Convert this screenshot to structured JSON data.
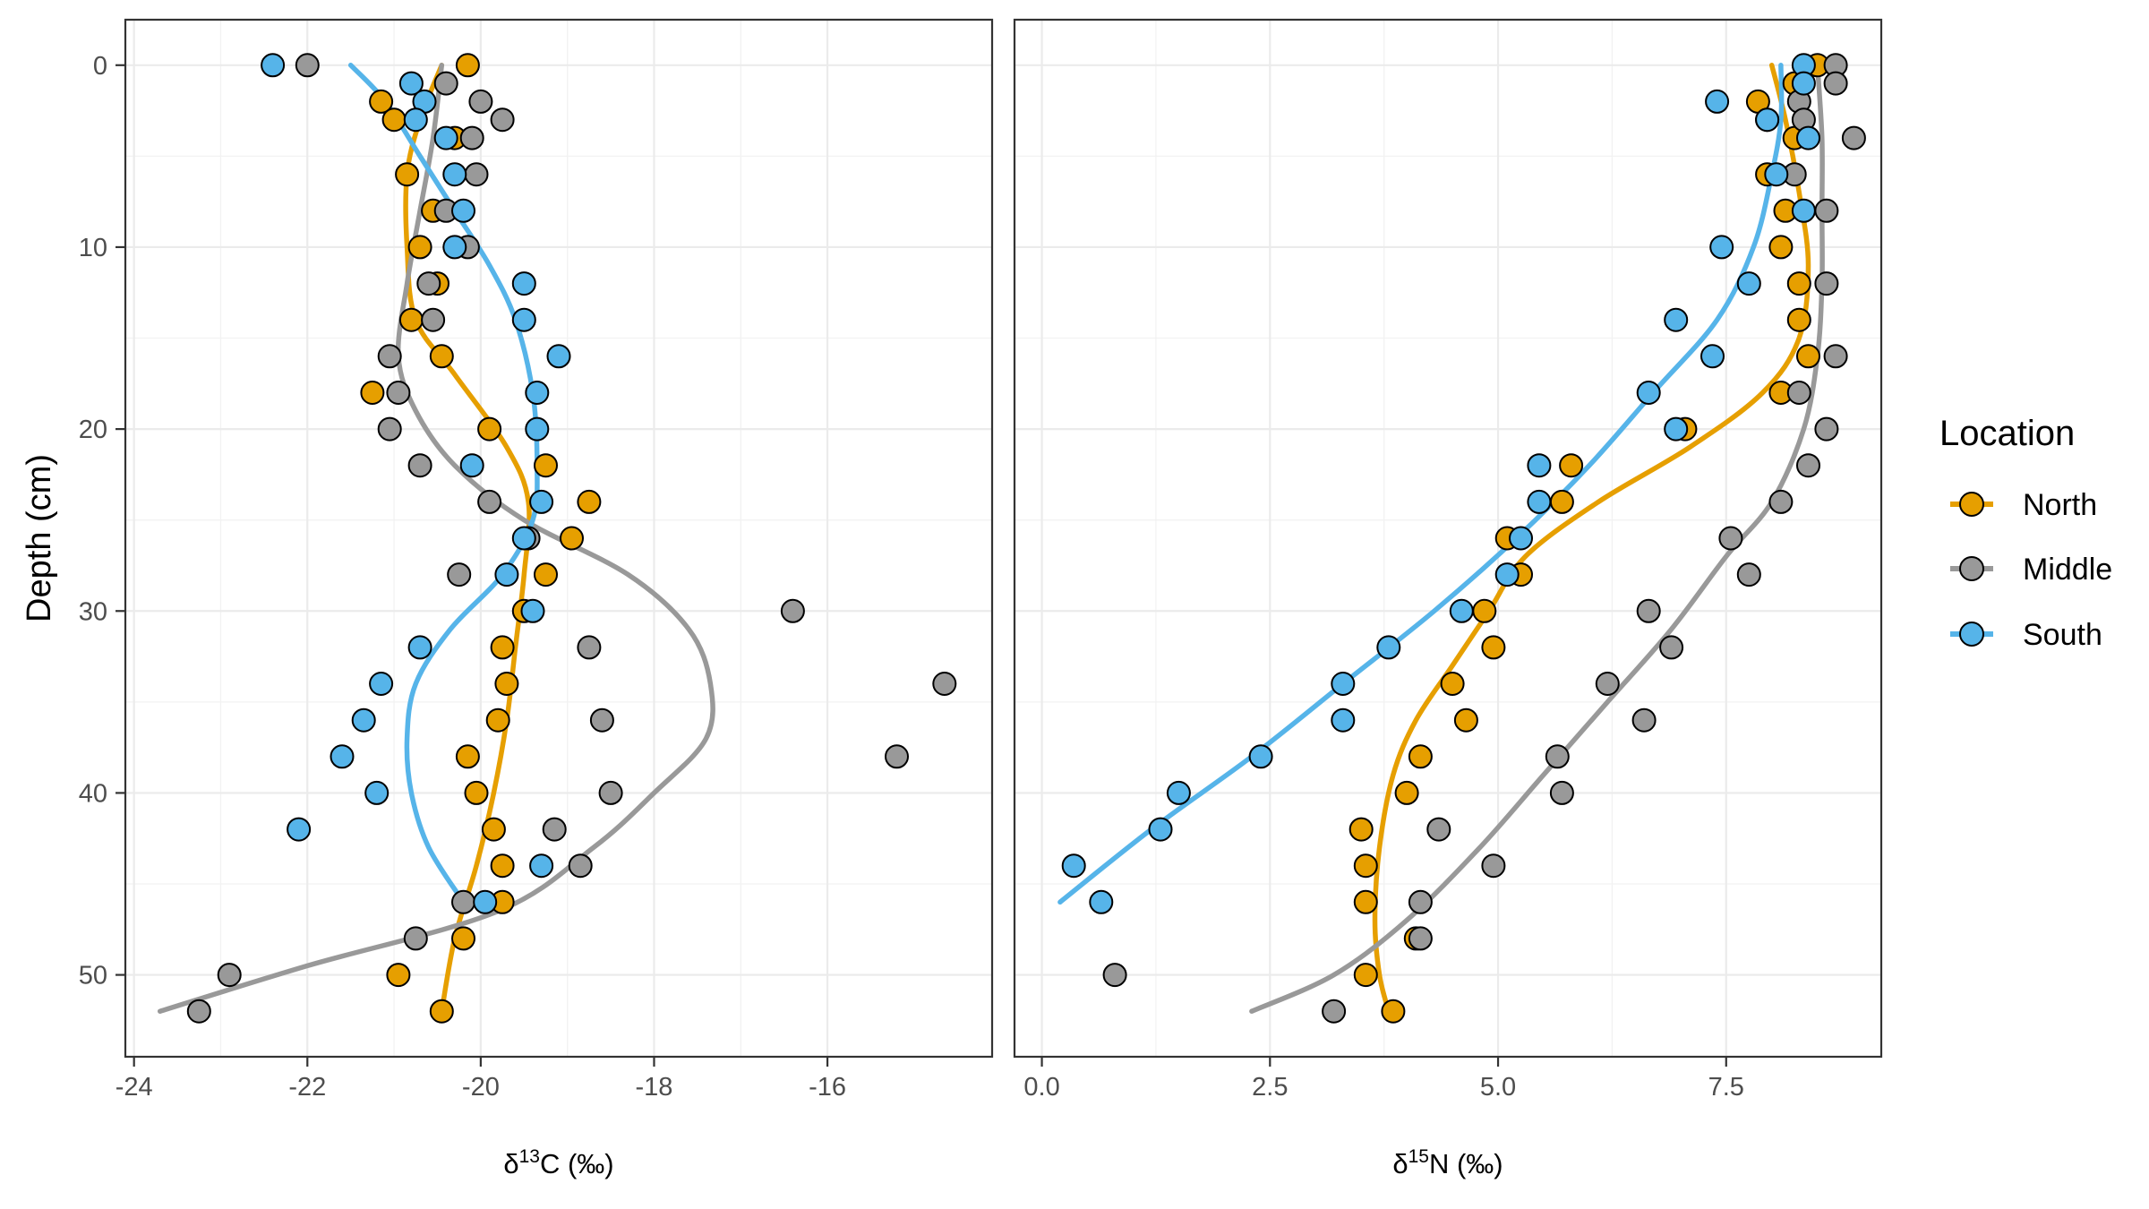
{
  "chart_data": [
    {
      "type": "scatter",
      "panel": "left",
      "xlabel": "δ13C (‰)",
      "xlabel_main": "δ",
      "xlabel_sup": "13",
      "xlabel_rest": "C (‰)",
      "ylabel": "Depth (cm)",
      "xlim": [
        -24.1,
        -14.1
      ],
      "ylim": [
        54.5,
        -2.5
      ],
      "y_reversed": true,
      "grid": true,
      "x_ticks": [
        -24,
        -22,
        -20,
        -18,
        -16
      ],
      "x_tick_labels": [
        "-24",
        "-22",
        "-20",
        "-18",
        "-16"
      ],
      "y_ticks": [
        0,
        10,
        20,
        30,
        40,
        50
      ],
      "y_tick_labels": [
        "0",
        "10",
        "20",
        "30",
        "40",
        "50"
      ],
      "series": [
        {
          "name": "North",
          "color": "#E69F00",
          "points": [
            [
              -20.15,
              0
            ],
            [
              -21.15,
              2
            ],
            [
              -21.0,
              3
            ],
            [
              -20.3,
              4
            ],
            [
              -20.85,
              6
            ],
            [
              -20.55,
              8
            ],
            [
              -20.7,
              10
            ],
            [
              -20.5,
              12
            ],
            [
              -20.8,
              14
            ],
            [
              -20.45,
              16
            ],
            [
              -21.25,
              18
            ],
            [
              -19.9,
              20
            ],
            [
              -19.25,
              22
            ],
            [
              -18.75,
              24
            ],
            [
              -18.95,
              26
            ],
            [
              -19.25,
              28
            ],
            [
              -19.5,
              30
            ],
            [
              -19.75,
              32
            ],
            [
              -19.7,
              34
            ],
            [
              -19.8,
              36
            ],
            [
              -20.15,
              38
            ],
            [
              -20.05,
              40
            ],
            [
              -19.85,
              42
            ],
            [
              -19.75,
              44
            ],
            [
              -19.75,
              46
            ],
            [
              -20.2,
              48
            ],
            [
              -20.95,
              50
            ],
            [
              -20.45,
              52
            ]
          ],
          "fit": [
            [
              -20.45,
              52
            ],
            [
              -20.3,
              48
            ],
            [
              -20.05,
              44
            ],
            [
              -19.85,
              40
            ],
            [
              -19.7,
              36
            ],
            [
              -19.6,
              32
            ],
            [
              -19.5,
              28
            ],
            [
              -19.45,
              24
            ],
            [
              -19.7,
              21
            ],
            [
              -20.3,
              17
            ],
            [
              -20.75,
              14
            ],
            [
              -20.85,
              10
            ],
            [
              -20.85,
              6
            ],
            [
              -20.7,
              3
            ],
            [
              -20.45,
              0
            ]
          ]
        },
        {
          "name": "Middle",
          "color": "#999999",
          "points": [
            [
              -22.0,
              0
            ],
            [
              -20.4,
              1
            ],
            [
              -20.0,
              2
            ],
            [
              -19.75,
              3
            ],
            [
              -20.1,
              4
            ],
            [
              -20.05,
              6
            ],
            [
              -20.4,
              8
            ],
            [
              -20.15,
              10
            ],
            [
              -20.6,
              12
            ],
            [
              -20.55,
              14
            ],
            [
              -21.05,
              16
            ],
            [
              -20.95,
              18
            ],
            [
              -21.05,
              20
            ],
            [
              -20.7,
              22
            ],
            [
              -19.9,
              24
            ],
            [
              -19.45,
              26
            ],
            [
              -20.25,
              28
            ],
            [
              -16.4,
              30
            ],
            [
              -18.75,
              32
            ],
            [
              -14.65,
              34
            ],
            [
              -18.6,
              36
            ],
            [
              -15.2,
              38
            ],
            [
              -18.5,
              40
            ],
            [
              -19.15,
              42
            ],
            [
              -18.85,
              44
            ],
            [
              -20.2,
              46
            ],
            [
              -20.75,
              48
            ],
            [
              -22.9,
              50
            ],
            [
              -23.25,
              52
            ]
          ],
          "fit": [
            [
              -20.45,
              0
            ],
            [
              -20.55,
              4
            ],
            [
              -20.7,
              8
            ],
            [
              -20.85,
              12
            ],
            [
              -20.95,
              16
            ],
            [
              -20.75,
              19
            ],
            [
              -20.3,
              22
            ],
            [
              -19.5,
              25
            ],
            [
              -18.3,
              28
            ],
            [
              -17.6,
              31
            ],
            [
              -17.35,
              34
            ],
            [
              -17.4,
              37
            ],
            [
              -18.0,
              40
            ],
            [
              -18.7,
              43
            ],
            [
              -19.8,
              46.5
            ],
            [
              -22.0,
              49.5
            ],
            [
              -23.7,
              52
            ]
          ]
        },
        {
          "name": "South",
          "color": "#56B4E9",
          "points": [
            [
              -22.4,
              0
            ],
            [
              -20.8,
              1
            ],
            [
              -20.65,
              2
            ],
            [
              -20.75,
              3
            ],
            [
              -20.4,
              4
            ],
            [
              -20.3,
              6
            ],
            [
              -20.2,
              8
            ],
            [
              -20.3,
              10
            ],
            [
              -19.5,
              12
            ],
            [
              -19.5,
              14
            ],
            [
              -19.1,
              16
            ],
            [
              -19.35,
              18
            ],
            [
              -19.35,
              20
            ],
            [
              -20.1,
              22
            ],
            [
              -19.3,
              24
            ],
            [
              -19.5,
              26
            ],
            [
              -19.7,
              28
            ],
            [
              -19.4,
              30
            ],
            [
              -20.7,
              32
            ],
            [
              -21.15,
              34
            ],
            [
              -21.35,
              36
            ],
            [
              -21.6,
              38
            ],
            [
              -21.2,
              40
            ],
            [
              -22.1,
              42
            ],
            [
              -19.3,
              44
            ],
            [
              -19.95,
              46
            ]
          ],
          "fit": [
            [
              -21.5,
              0
            ],
            [
              -21.1,
              2
            ],
            [
              -20.7,
              5
            ],
            [
              -20.3,
              8
            ],
            [
              -19.9,
              11
            ],
            [
              -19.6,
              14
            ],
            [
              -19.4,
              18
            ],
            [
              -19.35,
              22
            ],
            [
              -19.4,
              25
            ],
            [
              -19.75,
              28
            ],
            [
              -20.35,
              31
            ],
            [
              -20.75,
              34
            ],
            [
              -20.85,
              37
            ],
            [
              -20.8,
              40
            ],
            [
              -20.6,
              43
            ],
            [
              -20.2,
              46
            ]
          ]
        }
      ]
    },
    {
      "type": "scatter",
      "panel": "right",
      "xlabel": "δ15N (‰)",
      "xlabel_main": "δ",
      "xlabel_sup": "15",
      "xlabel_rest": "N (‰)",
      "xlim": [
        -0.3,
        9.2
      ],
      "ylim": [
        54.5,
        -2.5
      ],
      "y_reversed": true,
      "grid": true,
      "x_ticks": [
        0,
        2.5,
        5,
        7.5
      ],
      "x_tick_labels": [
        "0.0",
        "2.5",
        "5.0",
        "7.5"
      ],
      "series": [
        {
          "name": "North",
          "color": "#E69F00",
          "points": [
            [
              8.5,
              0
            ],
            [
              8.25,
              1
            ],
            [
              7.85,
              2
            ],
            [
              7.95,
              3
            ],
            [
              8.25,
              4
            ],
            [
              7.95,
              6
            ],
            [
              8.15,
              8
            ],
            [
              8.1,
              10
            ],
            [
              8.3,
              12
            ],
            [
              8.3,
              14
            ],
            [
              8.4,
              16
            ],
            [
              8.1,
              18
            ],
            [
              7.05,
              20
            ],
            [
              5.8,
              22
            ],
            [
              5.7,
              24
            ],
            [
              5.1,
              26
            ],
            [
              5.25,
              28
            ],
            [
              4.85,
              30
            ],
            [
              4.95,
              32
            ],
            [
              4.5,
              34
            ],
            [
              4.65,
              36
            ],
            [
              4.15,
              38
            ],
            [
              4.0,
              40
            ],
            [
              3.5,
              42
            ],
            [
              3.55,
              44
            ],
            [
              3.55,
              46
            ],
            [
              4.1,
              48
            ],
            [
              3.55,
              50
            ],
            [
              3.85,
              52
            ]
          ],
          "fit": [
            [
              8.0,
              0
            ],
            [
              8.15,
              3
            ],
            [
              8.3,
              7
            ],
            [
              8.4,
              11
            ],
            [
              8.3,
              15
            ],
            [
              7.9,
              18
            ],
            [
              7.1,
              21
            ],
            [
              6.1,
              24
            ],
            [
              5.3,
              27
            ],
            [
              4.9,
              30
            ],
            [
              4.5,
              33
            ],
            [
              4.1,
              36
            ],
            [
              3.85,
              39
            ],
            [
              3.7,
              43
            ],
            [
              3.65,
              47
            ],
            [
              3.7,
              50
            ],
            [
              3.8,
              52
            ]
          ]
        },
        {
          "name": "Middle",
          "color": "#999999",
          "points": [
            [
              8.7,
              0
            ],
            [
              8.7,
              1
            ],
            [
              8.3,
              2
            ],
            [
              8.35,
              3
            ],
            [
              8.9,
              4
            ],
            [
              8.25,
              6
            ],
            [
              8.6,
              8
            ],
            [
              8.6,
              12
            ],
            [
              8.7,
              16
            ],
            [
              8.3,
              18
            ],
            [
              8.6,
              20
            ],
            [
              8.4,
              22
            ],
            [
              8.1,
              24
            ],
            [
              7.55,
              26
            ],
            [
              7.75,
              28
            ],
            [
              6.65,
              30
            ],
            [
              6.9,
              32
            ],
            [
              6.2,
              34
            ],
            [
              6.6,
              36
            ],
            [
              5.65,
              38
            ],
            [
              5.7,
              40
            ],
            [
              4.35,
              42
            ],
            [
              4.95,
              44
            ],
            [
              4.15,
              46
            ],
            [
              4.15,
              48
            ],
            [
              0.8,
              50
            ],
            [
              3.2,
              52
            ]
          ],
          "fit": [
            [
              8.5,
              0
            ],
            [
              8.55,
              4
            ],
            [
              8.55,
              8
            ],
            [
              8.55,
              12
            ],
            [
              8.5,
              16
            ],
            [
              8.35,
              20
            ],
            [
              8.0,
              24
            ],
            [
              7.5,
              27
            ],
            [
              6.9,
              31
            ],
            [
              6.2,
              35
            ],
            [
              5.5,
              39
            ],
            [
              4.8,
              43
            ],
            [
              4.0,
              47
            ],
            [
              3.2,
              50
            ],
            [
              2.3,
              52
            ]
          ]
        },
        {
          "name": "South",
          "color": "#56B4E9",
          "points": [
            [
              8.35,
              0
            ],
            [
              8.35,
              1
            ],
            [
              7.4,
              2
            ],
            [
              7.95,
              3
            ],
            [
              8.4,
              4
            ],
            [
              8.05,
              6
            ],
            [
              8.35,
              8
            ],
            [
              7.45,
              10
            ],
            [
              7.75,
              12
            ],
            [
              6.95,
              14
            ],
            [
              7.35,
              16
            ],
            [
              6.65,
              18
            ],
            [
              6.95,
              20
            ],
            [
              5.45,
              22
            ],
            [
              5.45,
              24
            ],
            [
              5.25,
              26
            ],
            [
              5.1,
              28
            ],
            [
              4.6,
              30
            ],
            [
              3.8,
              32
            ],
            [
              3.3,
              34
            ],
            [
              3.3,
              36
            ],
            [
              2.4,
              38
            ],
            [
              1.5,
              40
            ],
            [
              1.3,
              42
            ],
            [
              0.35,
              44
            ],
            [
              0.65,
              46
            ]
          ],
          "fit": [
            [
              8.1,
              0
            ],
            [
              8.1,
              3
            ],
            [
              8.0,
              6
            ],
            [
              7.8,
              10
            ],
            [
              7.4,
              14
            ],
            [
              6.7,
              18
            ],
            [
              6.0,
              22
            ],
            [
              5.2,
              26
            ],
            [
              4.3,
              30
            ],
            [
              3.3,
              34
            ],
            [
              2.3,
              38
            ],
            [
              1.2,
              42
            ],
            [
              0.2,
              46
            ]
          ]
        }
      ]
    }
  ],
  "legend": {
    "title": "Location",
    "items": [
      {
        "label": "North",
        "color": "#E69F00"
      },
      {
        "label": "Middle",
        "color": "#999999"
      },
      {
        "label": "South",
        "color": "#56B4E9"
      }
    ]
  }
}
